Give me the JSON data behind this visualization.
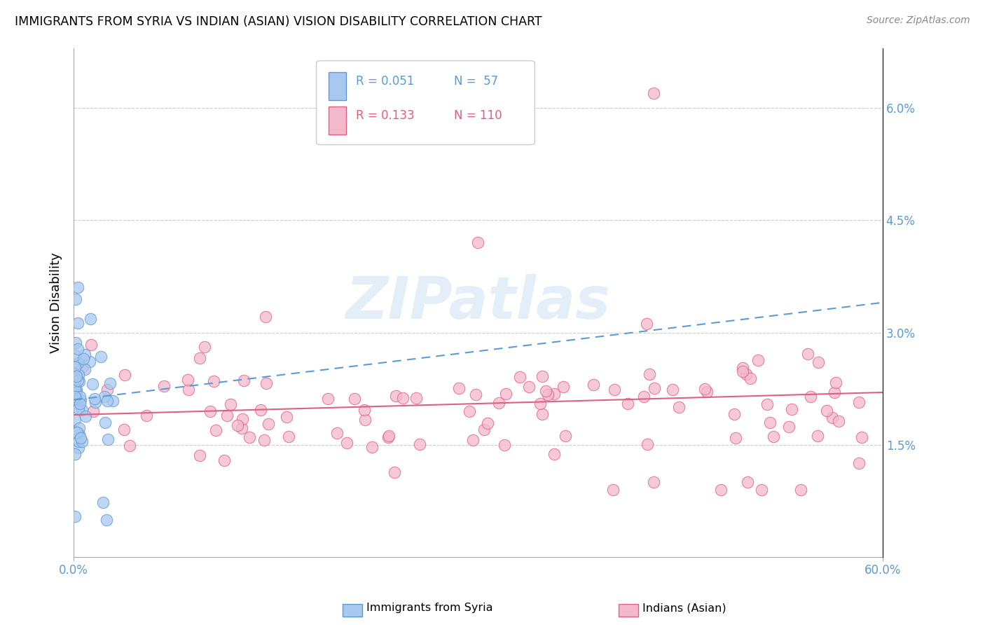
{
  "title": "IMMIGRANTS FROM SYRIA VS INDIAN (ASIAN) VISION DISABILITY CORRELATION CHART",
  "source": "Source: ZipAtlas.com",
  "ylabel": "Vision Disability",
  "ytick_vals": [
    0.0,
    0.015,
    0.03,
    0.045,
    0.06
  ],
  "ytick_labels": [
    "",
    "1.5%",
    "3.0%",
    "4.5%",
    "6.0%"
  ],
  "xlim": [
    0.0,
    0.6
  ],
  "ylim": [
    0.0,
    0.068
  ],
  "xtick_vals": [
    0.0,
    0.6
  ],
  "xtick_labels": [
    "0.0%",
    "60.0%"
  ],
  "legend_r1": "R = 0.051",
  "legend_n1": "N =  57",
  "legend_r2": "R = 0.133",
  "legend_n2": "N = 110",
  "color_blue_fill": "#a8c8f0",
  "color_pink_fill": "#f4b8cc",
  "color_blue_edge": "#5b9bd5",
  "color_pink_edge": "#e06080",
  "color_blue_line": "#5b9bd5",
  "color_pink_line": "#e06080",
  "color_axis_text": "#5b9bd5",
  "background": "#ffffff",
  "grid_color": "#cccccc",
  "watermark_text": "ZIPatlas",
  "watermark_color": "#c8dff5",
  "syria_trend_x": [
    0.0,
    0.6
  ],
  "syria_trend_y": [
    0.021,
    0.034
  ],
  "india_trend_x": [
    0.0,
    0.6
  ],
  "india_trend_y": [
    0.019,
    0.022
  ],
  "bottom_legend": [
    {
      "label": "Immigrants from Syria",
      "color_fill": "#a8c8f0",
      "color_edge": "#5b9bd5"
    },
    {
      "label": "Indians (Asian)",
      "color_fill": "#f4b8cc",
      "color_edge": "#e06080"
    }
  ]
}
